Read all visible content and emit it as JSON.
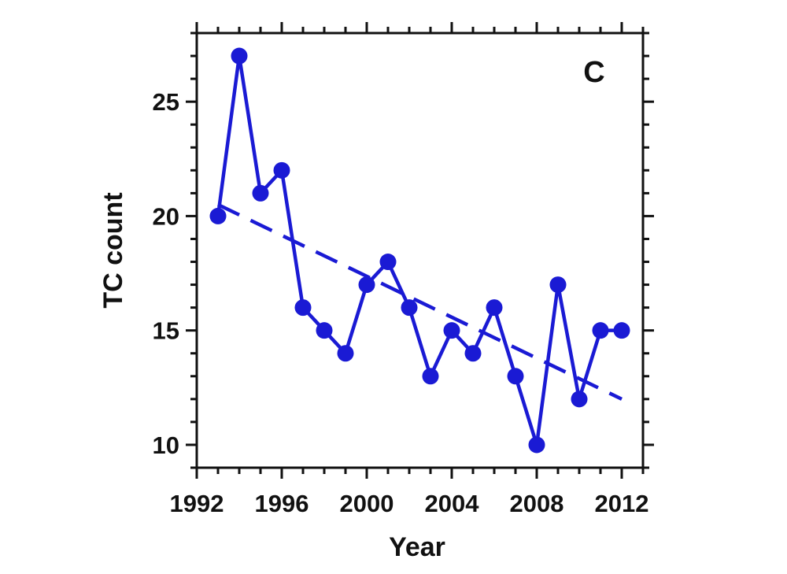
{
  "chart_data": {
    "type": "line",
    "panel_label": "C",
    "xlabel": "Year",
    "ylabel": "TC count",
    "xlim": [
      1992,
      2013
    ],
    "ylim": [
      9,
      28
    ],
    "xticks": [
      1992,
      1996,
      2000,
      2004,
      2008,
      2012
    ],
    "yticks": [
      10,
      15,
      20,
      25
    ],
    "grid": false,
    "series": [
      {
        "style": "solid-line-with-markers",
        "color": "#1a1ad4",
        "x": [
          1993,
          1994,
          1995,
          1996,
          1997,
          1998,
          1999,
          2000,
          2001,
          2002,
          2003,
          2004,
          2005,
          2006,
          2007,
          2008,
          2009,
          2010,
          2011,
          2012
        ],
        "y": [
          20,
          27,
          21,
          22,
          16,
          15,
          14,
          17,
          18,
          16,
          13,
          15,
          14,
          16,
          13,
          10,
          17,
          12,
          15,
          15
        ]
      },
      {
        "style": "dashed-trend-line",
        "color": "#1a1ad4",
        "x": [
          1993,
          2012
        ],
        "y": [
          20.5,
          12.0
        ]
      }
    ]
  }
}
